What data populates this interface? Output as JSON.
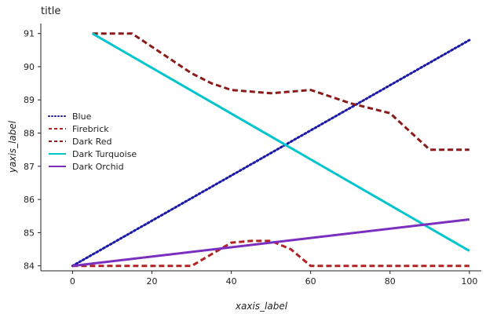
{
  "chart_data": {
    "type": "line",
    "title": "title",
    "xlabel": "xaxis_label",
    "ylabel": "yaxis_label",
    "xlim": [
      -8,
      103
    ],
    "ylim": [
      83.85,
      91.3
    ],
    "xticks": [
      0,
      20,
      40,
      60,
      80,
      100
    ],
    "yticks": [
      84,
      85,
      86,
      87,
      88,
      89,
      90,
      91
    ],
    "grid": false,
    "legend_position": "top-left",
    "series": [
      {
        "name": "Blue",
        "color": "#1a1aa6",
        "dash": "dotted",
        "x": [
          0,
          100
        ],
        "y": [
          84.0,
          90.8
        ]
      },
      {
        "name": "Firebrick",
        "color": "#b22222",
        "dash": "dashed",
        "x": [
          0,
          20,
          30,
          40,
          45,
          50,
          55,
          60,
          80,
          100
        ],
        "y": [
          84.0,
          84.0,
          84.0,
          84.7,
          84.75,
          84.75,
          84.5,
          84.0,
          84.0,
          84.0
        ]
      },
      {
        "name": "Dark Red",
        "color": "#8b1a1a",
        "dash": "dashed",
        "x": [
          5,
          10,
          15,
          20,
          25,
          30,
          35,
          40,
          50,
          60,
          70,
          80,
          90,
          100
        ],
        "y": [
          91.0,
          91.0,
          91.0,
          90.6,
          90.2,
          89.8,
          89.5,
          89.3,
          89.2,
          89.3,
          88.9,
          88.6,
          87.5,
          87.5
        ]
      },
      {
        "name": "Dark Turquoise",
        "color": "#00c5cd",
        "dash": "solid",
        "x": [
          5,
          100
        ],
        "y": [
          91.0,
          84.45
        ]
      },
      {
        "name": "Dark Orchid",
        "color": "#7b2fbe",
        "dash": "solid",
        "x": [
          0,
          100
        ],
        "y": [
          84.0,
          85.4
        ]
      }
    ]
  }
}
